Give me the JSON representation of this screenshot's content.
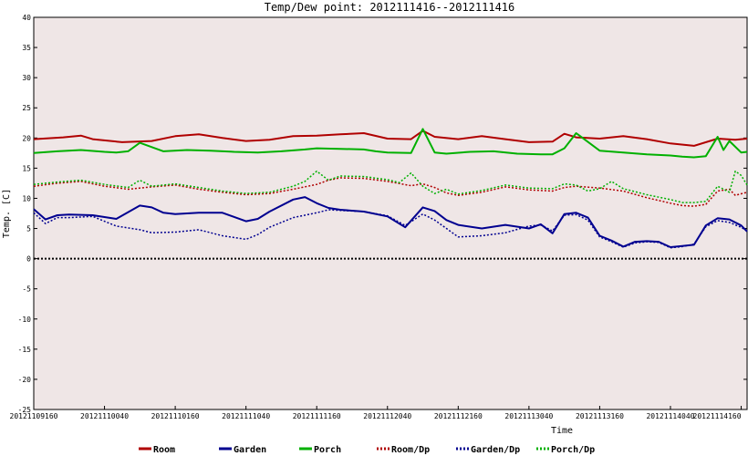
{
  "chart_data": {
    "type": "line",
    "title": "Temp/Dew point: 2012111416--2012111416",
    "xlabel": "Time",
    "ylabel": "Temp. [C]",
    "ylim": [
      -25,
      40
    ],
    "yticks": [
      40,
      35,
      30,
      25,
      20,
      15,
      10,
      5,
      0,
      -5,
      -10,
      -15,
      -20,
      -25
    ],
    "x_tick_labels": [
      "20121109160",
      "20121110040",
      "20121110160",
      "20121111040",
      "20121111160",
      "20121112040",
      "20121112160",
      "20121113040",
      "20121113160",
      "20121114040",
      "20121114160"
    ],
    "x_tick_values": [
      0,
      12,
      24,
      36,
      48,
      60,
      72,
      84,
      96,
      108,
      120
    ],
    "xlim": [
      0,
      121
    ],
    "reference_line": {
      "y": 0,
      "style": "dotted",
      "color": "#000000"
    },
    "grid": false,
    "legend_position": "bottom",
    "background_color": "#efe6e6",
    "series": [
      {
        "name": "Room",
        "color": "#b00000",
        "style": "solid",
        "x": [
          0,
          5,
          8,
          10,
          15,
          20,
          24,
          28,
          32,
          36,
          40,
          44,
          48,
          52,
          56,
          60,
          64,
          66,
          68,
          72,
          76,
          80,
          84,
          88,
          90,
          92,
          96,
          100,
          104,
          108,
          112,
          116,
          119,
          121
        ],
        "y": [
          19.8,
          20.1,
          20.4,
          19.8,
          19.3,
          19.5,
          20.3,
          20.6,
          20.0,
          19.5,
          19.7,
          20.3,
          20.4,
          20.6,
          20.8,
          19.9,
          19.8,
          21.2,
          20.2,
          19.8,
          20.3,
          19.8,
          19.3,
          19.4,
          20.7,
          20.1,
          19.9,
          20.3,
          19.8,
          19.1,
          18.7,
          19.9,
          19.7,
          19.9
        ]
      },
      {
        "name": "Garden",
        "color": "#000090",
        "style": "solid",
        "x": [
          0,
          2,
          4,
          6,
          10,
          14,
          18,
          20,
          22,
          24,
          28,
          32,
          36,
          38,
          40,
          44,
          46,
          48,
          50,
          52,
          56,
          60,
          63,
          66,
          68,
          70,
          72,
          76,
          80,
          84,
          86,
          88,
          90,
          92,
          94,
          96,
          98,
          100,
          102,
          104,
          106,
          108,
          110,
          112,
          114,
          116,
          118,
          120,
          121
        ],
        "y": [
          8.2,
          6.5,
          7.2,
          7.3,
          7.2,
          6.6,
          8.8,
          8.5,
          7.6,
          7.4,
          7.6,
          7.6,
          6.2,
          6.6,
          7.8,
          9.8,
          10.2,
          9.2,
          8.4,
          8.1,
          7.8,
          7.0,
          5.2,
          8.5,
          7.9,
          6.4,
          5.6,
          5.0,
          5.6,
          5.0,
          5.7,
          4.2,
          7.4,
          7.6,
          6.8,
          3.8,
          3.0,
          2.0,
          2.8,
          2.9,
          2.8,
          1.9,
          2.1,
          2.3,
          5.5,
          6.7,
          6.5,
          5.5,
          4.5
        ]
      },
      {
        "name": "Porch",
        "color": "#00b000",
        "style": "solid",
        "x": [
          0,
          4,
          8,
          12,
          14,
          16,
          18,
          22,
          26,
          30,
          34,
          38,
          42,
          46,
          48,
          52,
          56,
          58,
          60,
          64,
          66,
          68,
          70,
          74,
          78,
          82,
          86,
          88,
          90,
          92,
          96,
          100,
          104,
          108,
          110,
          112,
          114,
          116,
          117,
          118,
          120,
          121
        ],
        "y": [
          17.5,
          17.8,
          18.0,
          17.7,
          17.6,
          17.8,
          19.2,
          17.8,
          18.0,
          17.9,
          17.7,
          17.6,
          17.8,
          18.1,
          18.3,
          18.2,
          18.1,
          17.8,
          17.6,
          17.5,
          21.5,
          17.6,
          17.4,
          17.7,
          17.8,
          17.4,
          17.3,
          17.3,
          18.3,
          20.8,
          17.9,
          17.6,
          17.3,
          17.1,
          16.9,
          16.8,
          17.0,
          20.2,
          18.0,
          19.5,
          17.6,
          17.7
        ]
      },
      {
        "name": "Room/Dp",
        "color": "#b00000",
        "style": "dotted",
        "x": [
          0,
          4,
          8,
          12,
          16,
          20,
          24,
          28,
          32,
          36,
          40,
          44,
          48,
          50,
          52,
          56,
          60,
          64,
          66,
          68,
          70,
          72,
          76,
          80,
          84,
          88,
          90,
          92,
          96,
          100,
          104,
          108,
          110,
          112,
          114,
          116,
          118,
          119,
          121
        ],
        "y": [
          12.0,
          12.5,
          12.8,
          12.0,
          11.5,
          11.9,
          12.2,
          11.5,
          11.0,
          10.6,
          10.8,
          11.5,
          12.3,
          13.0,
          13.4,
          13.3,
          12.8,
          12.1,
          12.4,
          11.8,
          10.9,
          10.5,
          11.0,
          11.9,
          11.4,
          11.2,
          11.8,
          12.0,
          11.7,
          11.2,
          10.1,
          9.2,
          8.8,
          8.7,
          9.0,
          11.2,
          11.5,
          10.5,
          11.0
        ]
      },
      {
        "name": "Garden/Dp",
        "color": "#000090",
        "style": "dotted",
        "x": [
          0,
          2,
          4,
          6,
          10,
          14,
          18,
          20,
          24,
          28,
          32,
          36,
          38,
          40,
          44,
          48,
          50,
          52,
          56,
          60,
          63,
          66,
          68,
          70,
          72,
          76,
          80,
          84,
          86,
          88,
          90,
          92,
          94,
          96,
          98,
          100,
          102,
          104,
          106,
          108,
          110,
          112,
          114,
          116,
          118,
          120,
          121
        ],
        "y": [
          7.6,
          5.8,
          6.8,
          6.8,
          7.0,
          5.4,
          4.8,
          4.3,
          4.4,
          4.8,
          3.8,
          3.2,
          4.0,
          5.2,
          6.8,
          7.6,
          8.1,
          8.0,
          7.8,
          7.1,
          5.5,
          7.4,
          6.4,
          5.0,
          3.6,
          3.8,
          4.3,
          5.4,
          5.6,
          4.6,
          7.2,
          7.3,
          6.4,
          3.6,
          2.8,
          1.9,
          2.6,
          2.8,
          2.7,
          1.8,
          2.0,
          2.4,
          5.3,
          6.3,
          6.0,
          5.2,
          4.6
        ]
      },
      {
        "name": "Porch/Dp",
        "color": "#00b000",
        "style": "dotted",
        "x": [
          0,
          4,
          8,
          12,
          16,
          18,
          20,
          24,
          28,
          32,
          36,
          40,
          44,
          46,
          48,
          50,
          52,
          56,
          60,
          62,
          64,
          66,
          68,
          70,
          72,
          76,
          80,
          84,
          88,
          90,
          92,
          94,
          96,
          98,
          100,
          104,
          108,
          110,
          112,
          114,
          116,
          118,
          119,
          120,
          121
        ],
        "y": [
          12.3,
          12.7,
          13.0,
          12.3,
          11.8,
          13.0,
          12.0,
          12.4,
          11.8,
          11.2,
          10.8,
          11.0,
          12.0,
          12.8,
          14.5,
          13.0,
          13.7,
          13.6,
          13.1,
          12.6,
          14.2,
          12.0,
          10.8,
          11.5,
          10.7,
          11.3,
          12.2,
          11.7,
          11.6,
          12.4,
          12.2,
          11.2,
          11.6,
          12.8,
          11.6,
          10.6,
          9.8,
          9.3,
          9.3,
          9.5,
          12.0,
          11.0,
          14.5,
          13.8,
          12.2
        ]
      }
    ]
  }
}
